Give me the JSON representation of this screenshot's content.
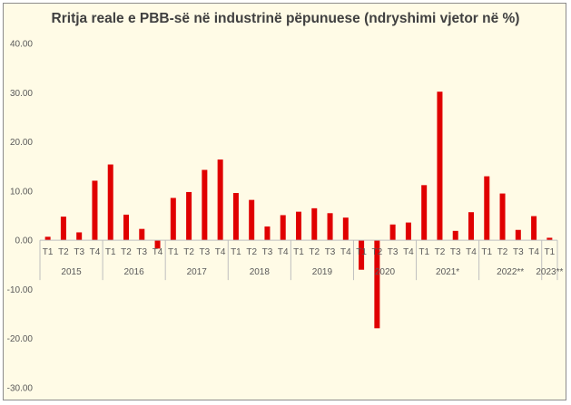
{
  "chart_data": {
    "type": "bar",
    "title": "Rritja reale e PBB-së në industrinë pëpunuese (ndryshimi vjetor në %)",
    "xlabel": "",
    "ylabel": "",
    "ylim": [
      -30,
      40
    ],
    "yticks": [
      "40.00",
      "30.00",
      "20.00",
      "10.00",
      "0.00",
      "-10.00",
      "-20.00",
      "-30.00"
    ],
    "ytick_values": [
      40,
      30,
      20,
      10,
      0,
      -10,
      -20,
      -30
    ],
    "grid": false,
    "legend": "none",
    "bar_color": "#e00000",
    "years": [
      {
        "label": "2015",
        "quarters": [
          "T1",
          "T2",
          "T3",
          "T4"
        ]
      },
      {
        "label": "2016",
        "quarters": [
          "T1",
          "T2",
          "T3",
          "T4"
        ]
      },
      {
        "label": "2017",
        "quarters": [
          "T1",
          "T2",
          "T3",
          "T4"
        ]
      },
      {
        "label": "2018",
        "quarters": [
          "T1",
          "T2",
          "T3",
          "T4"
        ]
      },
      {
        "label": "2019",
        "quarters": [
          "T1",
          "T2",
          "T3",
          "T4"
        ]
      },
      {
        "label": "2020",
        "quarters": [
          "T1",
          "T2",
          "T3",
          "T4"
        ]
      },
      {
        "label": "2021*",
        "quarters": [
          "T1",
          "T2",
          "T3",
          "T4"
        ]
      },
      {
        "label": "2022**",
        "quarters": [
          "T1",
          "T2",
          "T3",
          "T4"
        ]
      },
      {
        "label": "2023**",
        "quarters": [
          "T1"
        ]
      }
    ],
    "values": [
      0.7,
      4.8,
      1.6,
      12.1,
      15.4,
      5.2,
      2.3,
      -1.7,
      8.6,
      9.8,
      14.3,
      16.4,
      9.6,
      8.2,
      2.8,
      5.1,
      5.8,
      6.5,
      5.5,
      4.6,
      -6.0,
      -17.9,
      3.2,
      3.6,
      11.2,
      30.2,
      1.9,
      5.7,
      13.0,
      9.5,
      2.1,
      4.9,
      0.5
    ]
  }
}
